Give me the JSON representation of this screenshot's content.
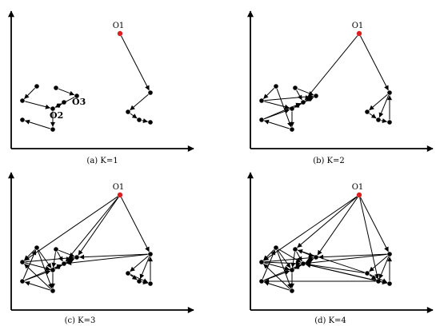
{
  "panels": [
    {
      "caption": "(a)  K=1",
      "labels": [
        {
          "node": "o1",
          "text": "O1",
          "bold": false
        },
        {
          "node": "c1",
          "text": "O2",
          "bold": true
        },
        {
          "node": "a3",
          "text": "O3",
          "bold": true
        }
      ]
    },
    {
      "caption": "(b)  K=2",
      "labels": [
        {
          "node": "o1",
          "text": "O1",
          "bold": false
        }
      ]
    },
    {
      "caption": "(c)  K=3",
      "labels": [
        {
          "node": "o1",
          "text": "O1",
          "bold": false
        }
      ]
    },
    {
      "caption": "(d)  K=4",
      "labels": [
        {
          "node": "o1",
          "text": "O1",
          "bold": false
        }
      ]
    }
  ],
  "colors": {
    "outlier": "#dd1f1f",
    "point": "#000000"
  },
  "nodes": [
    "o1",
    "a1",
    "a2",
    "a3",
    "a4",
    "c1",
    "c2",
    "c3",
    "c4",
    "b1",
    "b2",
    "b3",
    "b4"
  ],
  "edges": [
    [
      [
        "o1",
        "b1"
      ],
      [
        "b1",
        "b2"
      ],
      [
        "b2",
        "b3"
      ],
      [
        "b3",
        "b4"
      ],
      [
        "a1",
        "a2"
      ],
      [
        "a2",
        "c1"
      ],
      [
        "a4",
        "a3"
      ],
      [
        "a3",
        "c1"
      ],
      [
        "c1",
        "c3"
      ],
      [
        "c3",
        "c2"
      ],
      [
        "c1",
        "c4"
      ]
    ],
    [
      [
        "o1",
        "b1"
      ],
      [
        "o1",
        "c4"
      ],
      [
        "b1",
        "b2"
      ],
      [
        "b1",
        "b3"
      ],
      [
        "b2",
        "b3"
      ],
      [
        "b3",
        "b4"
      ],
      [
        "b4",
        "b1"
      ],
      [
        "a1",
        "a2"
      ],
      [
        "a1",
        "c3"
      ],
      [
        "a2",
        "c1"
      ],
      [
        "a2",
        "a3"
      ],
      [
        "a4",
        "a3"
      ],
      [
        "a3",
        "c1"
      ],
      [
        "a4",
        "c4"
      ],
      [
        "c1",
        "c3"
      ],
      [
        "c1",
        "a3"
      ],
      [
        "c3",
        "c2"
      ],
      [
        "c2",
        "c1"
      ],
      [
        "c1",
        "c4"
      ],
      [
        "c2",
        "c4"
      ],
      [
        "a3",
        "c4"
      ]
    ],
    [
      [
        "o1",
        "b1"
      ],
      [
        "o1",
        "c4"
      ],
      [
        "o1",
        "a2"
      ],
      [
        "o1",
        "a3"
      ],
      [
        "b1",
        "b2"
      ],
      [
        "b1",
        "b3"
      ],
      [
        "b2",
        "b3"
      ],
      [
        "b3",
        "b4"
      ],
      [
        "b4",
        "b1"
      ],
      [
        "b2",
        "b4"
      ],
      [
        "b1",
        "a3"
      ],
      [
        "b1",
        "c4"
      ],
      [
        "a1",
        "a2"
      ],
      [
        "a1",
        "c3"
      ],
      [
        "a1",
        "c1"
      ],
      [
        "a2",
        "c1"
      ],
      [
        "a2",
        "a3"
      ],
      [
        "a4",
        "a3"
      ],
      [
        "a3",
        "c1"
      ],
      [
        "a4",
        "c4"
      ],
      [
        "a4",
        "c1"
      ],
      [
        "c1",
        "c3"
      ],
      [
        "c1",
        "a3"
      ],
      [
        "c3",
        "c2"
      ],
      [
        "c2",
        "c1"
      ],
      [
        "c1",
        "c4"
      ],
      [
        "c2",
        "c4"
      ],
      [
        "a3",
        "c4"
      ],
      [
        "c3",
        "a2"
      ],
      [
        "c2",
        "a1"
      ]
    ],
    [
      [
        "o1",
        "b1"
      ],
      [
        "o1",
        "b3"
      ],
      [
        "o1",
        "a2"
      ],
      [
        "o1",
        "a3"
      ],
      [
        "o1",
        "a4"
      ],
      [
        "b1",
        "b2"
      ],
      [
        "b1",
        "b3"
      ],
      [
        "b2",
        "b3"
      ],
      [
        "b3",
        "b4"
      ],
      [
        "b4",
        "b1"
      ],
      [
        "b2",
        "b4"
      ],
      [
        "b1",
        "a3"
      ],
      [
        "b1",
        "c4"
      ],
      [
        "b2",
        "c4"
      ],
      [
        "b2",
        "a4"
      ],
      [
        "b4",
        "c4"
      ],
      [
        "b3",
        "c4"
      ],
      [
        "a1",
        "a2"
      ],
      [
        "a1",
        "c3"
      ],
      [
        "a1",
        "c1"
      ],
      [
        "a2",
        "c1"
      ],
      [
        "a2",
        "a3"
      ],
      [
        "a4",
        "a3"
      ],
      [
        "a3",
        "c1"
      ],
      [
        "a4",
        "c4"
      ],
      [
        "a4",
        "c1"
      ],
      [
        "c1",
        "c3"
      ],
      [
        "c1",
        "a3"
      ],
      [
        "c3",
        "c2"
      ],
      [
        "c2",
        "c1"
      ],
      [
        "c1",
        "c4"
      ],
      [
        "c2",
        "c4"
      ],
      [
        "a3",
        "c4"
      ],
      [
        "c3",
        "a2"
      ],
      [
        "c2",
        "a1"
      ],
      [
        "a2",
        "c4"
      ],
      [
        "a1",
        "c4"
      ],
      [
        "b3",
        "c2"
      ]
    ]
  ]
}
